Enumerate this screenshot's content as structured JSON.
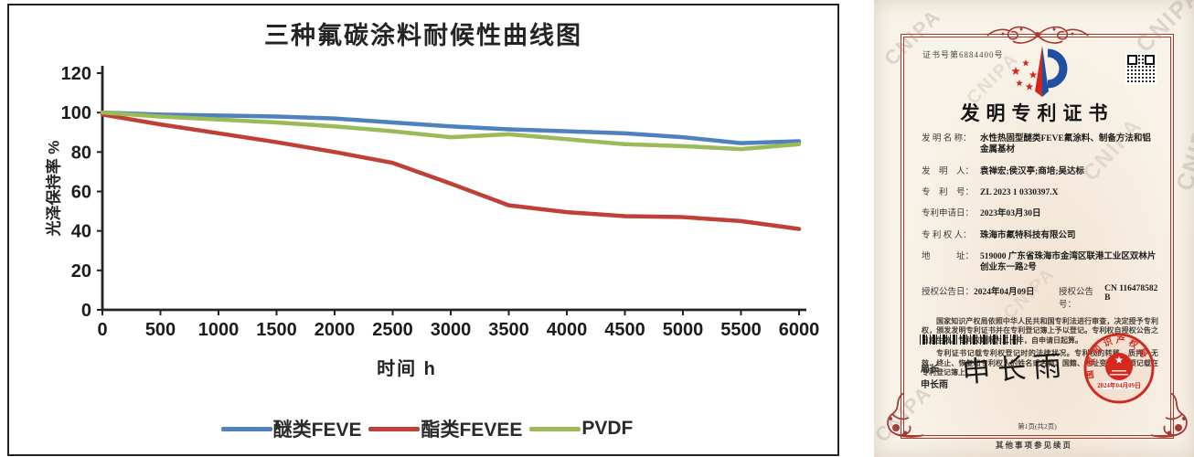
{
  "chart_data": {
    "type": "line",
    "title": "三种氟碳涂料耐候性曲线图",
    "xlabel": "时间 h",
    "ylabel": "光泽保持率 %",
    "x": [
      0,
      500,
      1000,
      1500,
      2000,
      2500,
      3000,
      3500,
      4000,
      4500,
      5000,
      5500,
      6000
    ],
    "xticks": [
      0,
      500,
      1000,
      1500,
      2000,
      2500,
      3000,
      3500,
      4000,
      4500,
      5000,
      5500,
      6000
    ],
    "yticks": [
      0,
      20,
      40,
      60,
      80,
      100,
      120
    ],
    "ylim": [
      0,
      120
    ],
    "grid": false,
    "legend_position": "bottom",
    "series": [
      {
        "name": "醚类FEVE",
        "color": "#4f81bd",
        "values": [
          100,
          99,
          98.5,
          98,
          97,
          95,
          93,
          91.5,
          90.5,
          89.5,
          87.5,
          84.5,
          85.5
        ]
      },
      {
        "name": "酯类FEVEE",
        "color": "#bf4036",
        "values": [
          99,
          94,
          89.5,
          85,
          80,
          74.5,
          64,
          53,
          49.5,
          47.5,
          47,
          45,
          41
        ]
      },
      {
        "name": "PVDF",
        "color": "#9bbb59",
        "values": [
          100,
          98,
          96.5,
          95,
          93,
          90.5,
          87.5,
          89,
          86.5,
          84,
          83,
          81.5,
          84
        ]
      }
    ]
  },
  "certificate": {
    "cert_no": "证书号第6884400号",
    "title": "发明专利证书",
    "fields": [
      {
        "label": "发 明 名 称：",
        "value": "水性热固型醚类FEVE氟涂料、制备方法和铝金属基材"
      },
      {
        "label": "发　明　人：",
        "value": "袁禅宏;侯汉亭;商培;吴达标"
      },
      {
        "label": "专　利　号：",
        "value": "ZL 2023 1 0330397.X"
      },
      {
        "label": "专利申请日：",
        "value": "2023年03月30日"
      },
      {
        "label": "专 利 权 人：",
        "value": "珠海市氟特科技有限公司"
      },
      {
        "label": "地　　　址：",
        "value": "519000 广东省珠海市金湾区联港工业区双林片创业东一路2号"
      }
    ],
    "grant_date_label": "授权公告日：",
    "grant_date": "2024年04月09日",
    "grant_no_label": "授权公告号：",
    "grant_no": "CN 116478582 B",
    "body_par1": "国家知识产权局依照中华人民共和国专利法进行审查，决定授予专利权，颁发发明专利证书并在专利登记簿上予以登记。专利权自授权公告之日起生效。专利权期限为二十年，自申请日起算。",
    "body_par2": "专利证书记载专利权登记时的法律状况。专利权的转移、质押、无效、终止、恢复和专利权人的姓名或名称、国籍、地址变更等事项记载在专利登记簿上。",
    "director_label": "局长",
    "director_name": "申长雨",
    "signature": "申长雨",
    "seal_agency": "国家知识产权局",
    "seal_date": "2024年04月09日",
    "page_footer": "第1页(共2页)",
    "continuation_note": "其他事项参见续页",
    "watermark": "CNIPA"
  }
}
